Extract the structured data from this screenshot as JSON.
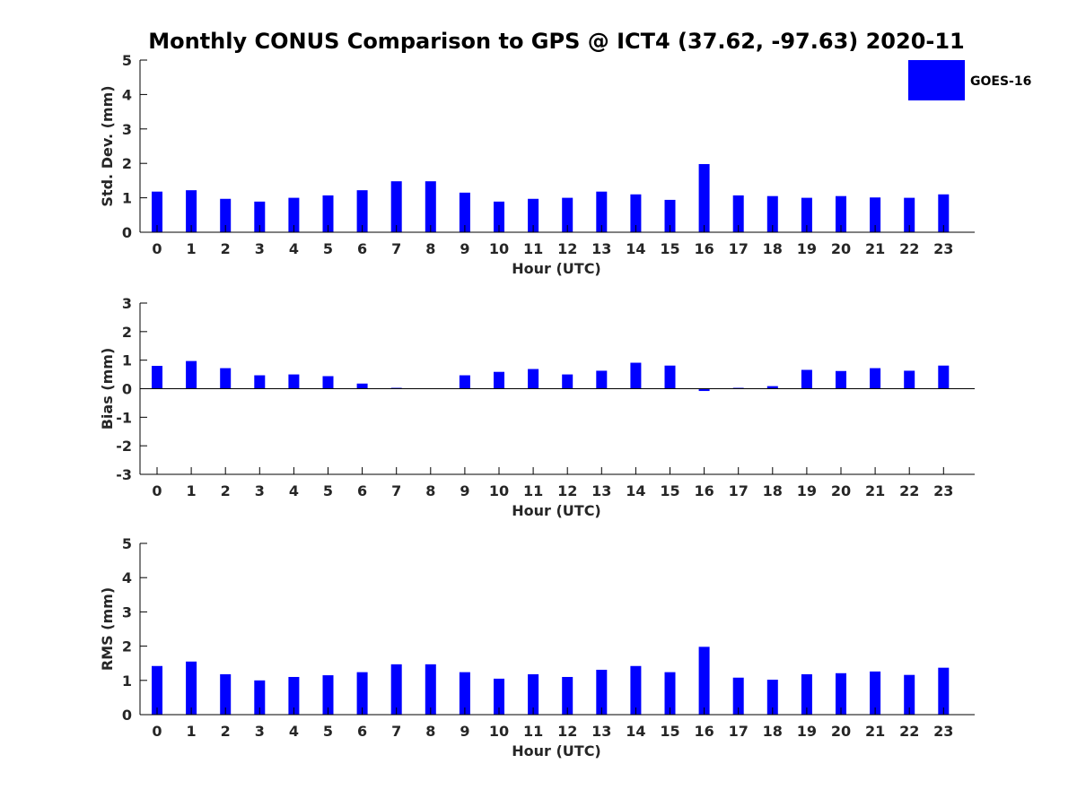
{
  "title": "Monthly CONUS Comparison to GPS @ ICT4 (37.62, -97.63) 2020-11",
  "legend": {
    "label": "GOES-16",
    "placement": "top-right"
  },
  "colors": {
    "bar": "#0000ff",
    "axis": "#000000",
    "text": "#262626"
  },
  "chart_data": [
    {
      "type": "bar",
      "xlabel": "Hour (UTC)",
      "ylabel": "Std. Dev. (mm)",
      "ylim": [
        0,
        5
      ],
      "yticks": [
        0,
        1,
        2,
        3,
        4,
        5
      ],
      "categories": [
        0,
        1,
        2,
        3,
        4,
        5,
        6,
        7,
        8,
        9,
        10,
        11,
        12,
        13,
        14,
        15,
        16,
        17,
        18,
        19,
        20,
        21,
        22,
        23
      ],
      "series": [
        {
          "name": "GOES-16",
          "values": [
            1.18,
            1.22,
            0.97,
            0.89,
            1.0,
            1.07,
            1.22,
            1.48,
            1.48,
            1.15,
            0.89,
            0.97,
            1.0,
            1.18,
            1.1,
            0.94,
            1.98,
            1.07,
            1.05,
            1.0,
            1.05,
            1.01,
            1.0,
            1.1
          ]
        }
      ]
    },
    {
      "type": "bar",
      "xlabel": "Hour (UTC)",
      "ylabel": "Bias (mm)",
      "ylim": [
        -3,
        3
      ],
      "yticks": [
        -3,
        -2,
        -1,
        0,
        1,
        2,
        3
      ],
      "categories": [
        0,
        1,
        2,
        3,
        4,
        5,
        6,
        7,
        8,
        9,
        10,
        11,
        12,
        13,
        14,
        15,
        16,
        17,
        18,
        19,
        20,
        21,
        22,
        23
      ],
      "series": [
        {
          "name": "GOES-16",
          "values": [
            0.8,
            0.97,
            0.72,
            0.47,
            0.5,
            0.44,
            0.18,
            0.03,
            0.0,
            0.47,
            0.59,
            0.69,
            0.5,
            0.63,
            0.91,
            0.81,
            -0.08,
            0.03,
            0.09,
            0.66,
            0.62,
            0.72,
            0.63,
            0.81
          ]
        }
      ]
    },
    {
      "type": "bar",
      "xlabel": "Hour (UTC)",
      "ylabel": "RMS (mm)",
      "ylim": [
        0,
        5
      ],
      "yticks": [
        0,
        1,
        2,
        3,
        4,
        5
      ],
      "categories": [
        0,
        1,
        2,
        3,
        4,
        5,
        6,
        7,
        8,
        9,
        10,
        11,
        12,
        13,
        14,
        15,
        16,
        17,
        18,
        19,
        20,
        21,
        22,
        23
      ],
      "series": [
        {
          "name": "GOES-16",
          "values": [
            1.42,
            1.55,
            1.18,
            1.0,
            1.1,
            1.15,
            1.24,
            1.47,
            1.47,
            1.24,
            1.05,
            1.18,
            1.1,
            1.31,
            1.42,
            1.24,
            1.98,
            1.08,
            1.02,
            1.18,
            1.21,
            1.26,
            1.16,
            1.37
          ]
        }
      ]
    }
  ]
}
